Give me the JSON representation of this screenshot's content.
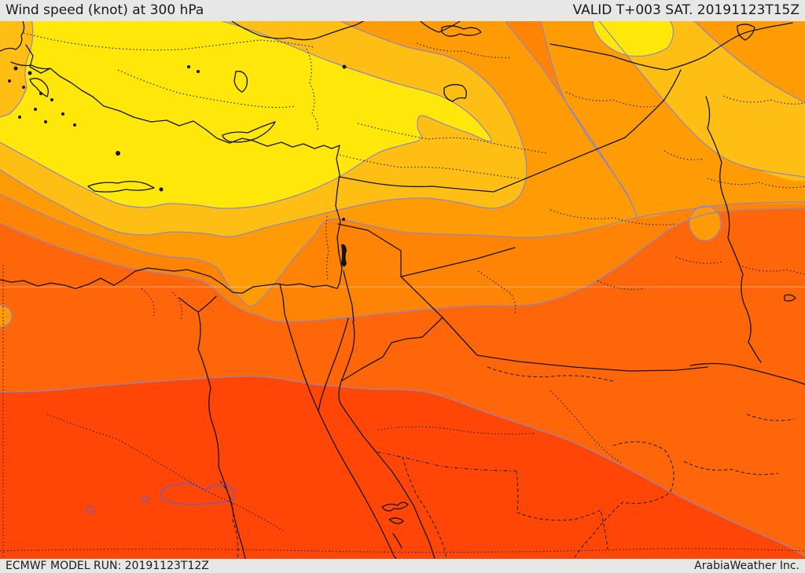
{
  "header": {
    "title": "Wind speed (knot) at 300 hPa",
    "valid_time": "VALID T+003 SAT. 20191123T15Z"
  },
  "footer": {
    "model_run": "ECMWF MODEL RUN: 20191123T12Z",
    "provider": "ArabiaWeather Inc."
  },
  "map": {
    "kind": "filled contour weather map",
    "colors": {
      "band_a_yellow": "#FFE70A",
      "band_b_amber": "#FFBE14",
      "band_c_orange": "#FF9C05",
      "band_d_dark_orange": "#FF8405",
      "band_e_red_orange": "#FF660A",
      "band_f_red": "#FF4606",
      "band_g_bright_red": "#FF2016",
      "contour_line": "#8F86C2",
      "contour_line_red": "#6A5BD0",
      "coast_border": "#141414",
      "admin_border": "#262626",
      "lat_line": "rgba(255,255,255,0.4)",
      "chrome_bg": "#E7E7E7",
      "chrome_text": "#1A1A1A"
    }
  }
}
